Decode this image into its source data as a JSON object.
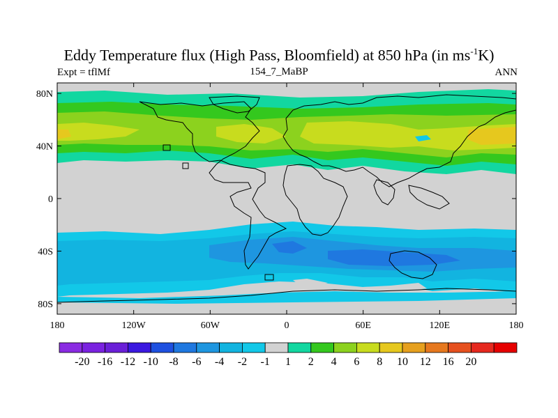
{
  "title": {
    "main": "Eddy Temperature flux (High Pass, Bloomfield) at 850 hPa (in ms",
    "sup": "-1",
    "tail": "K)"
  },
  "subtitles": {
    "left": "Expt = tflMf",
    "center": "154_7_MaBP",
    "right": "ANN"
  },
  "axes": {
    "lat_ticks": [
      {
        "value": 80,
        "label": "80N"
      },
      {
        "value": 40,
        "label": "40N"
      },
      {
        "value": 0,
        "label": "0"
      },
      {
        "value": -40,
        "label": "40S"
      },
      {
        "value": -80,
        "label": "80S"
      }
    ],
    "lon_ticks": [
      {
        "value": -180,
        "label": "180"
      },
      {
        "value": -120,
        "label": "120W"
      },
      {
        "value": -60,
        "label": "60W"
      },
      {
        "value": 0,
        "label": "0"
      },
      {
        "value": 60,
        "label": "60E"
      },
      {
        "value": 120,
        "label": "120E"
      },
      {
        "value": 180,
        "label": "180"
      }
    ]
  },
  "colorbar": {
    "colors": [
      "#8a2be2",
      "#7a22e0",
      "#6a1fd8",
      "#3a18e0",
      "#1e50e0",
      "#1f78e0",
      "#1e96e0",
      "#12b4e0",
      "#12c8e8",
      "#d2d2d2",
      "#12d7a0",
      "#34c81e",
      "#8cd21e",
      "#c8dc1e",
      "#e6c81e",
      "#e6a01e",
      "#e6781e",
      "#e6501e",
      "#e6281e",
      "#e60000"
    ],
    "labels": [
      "-20",
      "-16",
      "-12",
      "-10",
      "-8",
      "-6",
      "-4",
      "-2",
      "-1",
      "1",
      "2",
      "4",
      "6",
      "8",
      "10",
      "12",
      "16",
      "20"
    ]
  },
  "map_colors": {
    "neutral": "#d2d2d2",
    "neg1": "#12c8e8",
    "neg2": "#12b4e0",
    "neg4": "#1e96e0",
    "neg6": "#1f78e0",
    "neg8": "#1e50e0",
    "pos1": "#12d7a0",
    "pos2": "#34c81e",
    "pos4": "#8cd21e",
    "pos6": "#c8dc1e",
    "pos8": "#e6c81e"
  }
}
